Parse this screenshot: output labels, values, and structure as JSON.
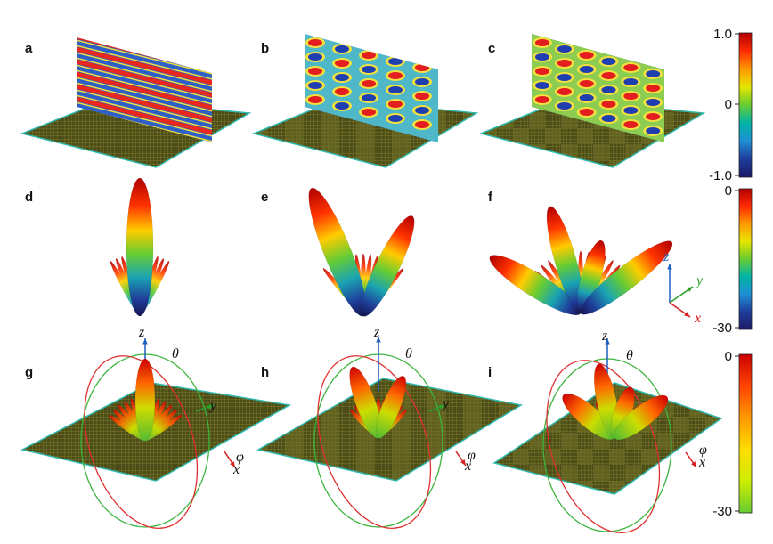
{
  "panels": [
    "a",
    "b",
    "c",
    "d",
    "e",
    "f",
    "g",
    "h",
    "i"
  ],
  "colorbars": [
    {
      "ticks": [
        "1.0",
        "0",
        "-1.0"
      ],
      "colors": [
        "#b30000",
        "#ff2a00",
        "#ff9900",
        "#e6e600",
        "#66cc33",
        "#00b3a6",
        "#1f8fd6",
        "#1f3d99",
        "#1a1a66"
      ]
    },
    {
      "ticks": [
        "0",
        "-30"
      ],
      "colors": [
        "#b30000",
        "#ff2a00",
        "#ff9900",
        "#e6e600",
        "#66cc33",
        "#00b3a6",
        "#1f8fd6",
        "#1f3d99",
        "#1a1a66"
      ]
    },
    {
      "ticks": [
        "0",
        "-30"
      ],
      "colors": [
        "#cc0000",
        "#ff4400",
        "#ff9900",
        "#ffdd00",
        "#ccee00",
        "#66cc33"
      ]
    }
  ],
  "axes_triad": {
    "z": "z",
    "y": "y",
    "x": "x"
  },
  "angles": {
    "theta": "θ",
    "phi": "φ"
  },
  "axes_g": {
    "z": "z",
    "y": "y",
    "x": "x"
  },
  "axes_h": {
    "z": "z",
    "y": "y",
    "x": "x"
  },
  "axes_i": {
    "z": "z",
    "x": "x"
  },
  "colors": {
    "plate": "#5a5a1e",
    "plate_edge": "#2fb8b0",
    "z_axis": "#1f5fbf",
    "y_axis": "#2aa02a",
    "x_axis": "#d62020",
    "theta_ring": "#e03030",
    "phi_ring": "#3cb43c"
  }
}
